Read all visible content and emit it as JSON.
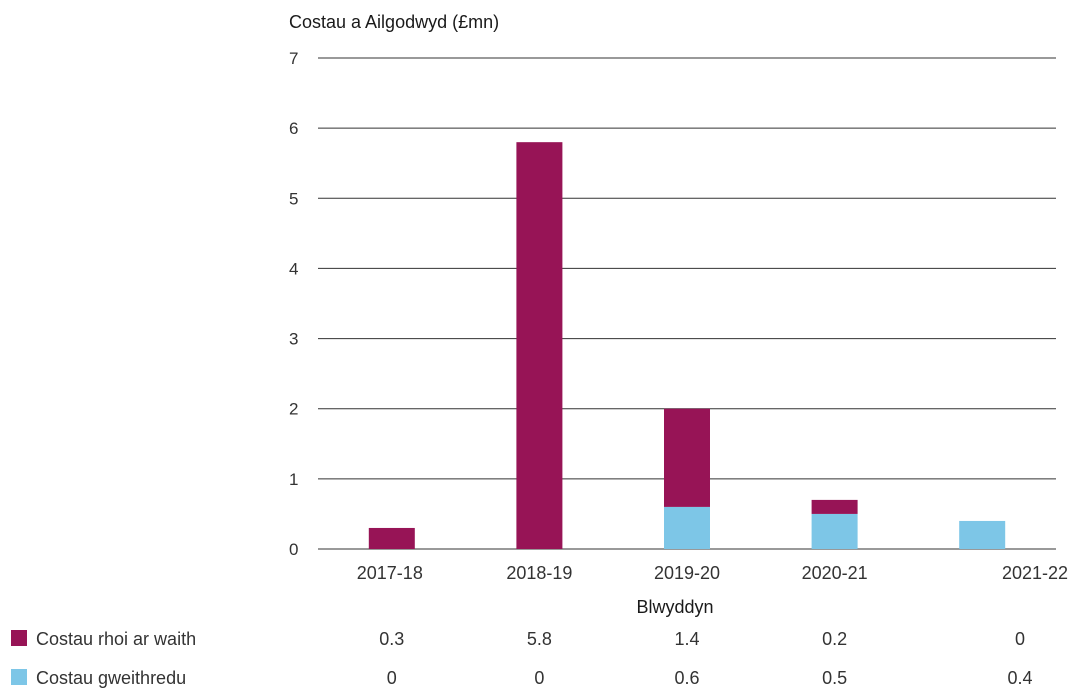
{
  "chart_data": {
    "type": "bar",
    "stacked": true,
    "ylabel": "Costau a Ailgodwyd (£mn)",
    "xlabel": "Blwyddyn",
    "ylim": [
      0,
      7
    ],
    "yticks": [
      "0",
      "1",
      "2",
      "3",
      "4",
      "5",
      "6",
      "7"
    ],
    "grid": true,
    "legend": "bottom-left",
    "categories": [
      "2017-18",
      "2018-19",
      "2019-20",
      "2020-21",
      "2021-22"
    ],
    "series": [
      {
        "name": "Costau gweithredu",
        "color": "#7dc6e7",
        "values": [
          0,
          0,
          0.6,
          0.5,
          0.4
        ],
        "value_labels": [
          "0",
          "0",
          "0.6",
          "0.5",
          "0.4"
        ]
      },
      {
        "name": "Costau rhoi ar waith",
        "color": "#971456",
        "values": [
          0.3,
          5.8,
          1.4,
          0.2,
          0
        ],
        "value_labels": [
          "0.3",
          "5.8",
          "1.4",
          "0.2",
          "0"
        ]
      }
    ]
  }
}
